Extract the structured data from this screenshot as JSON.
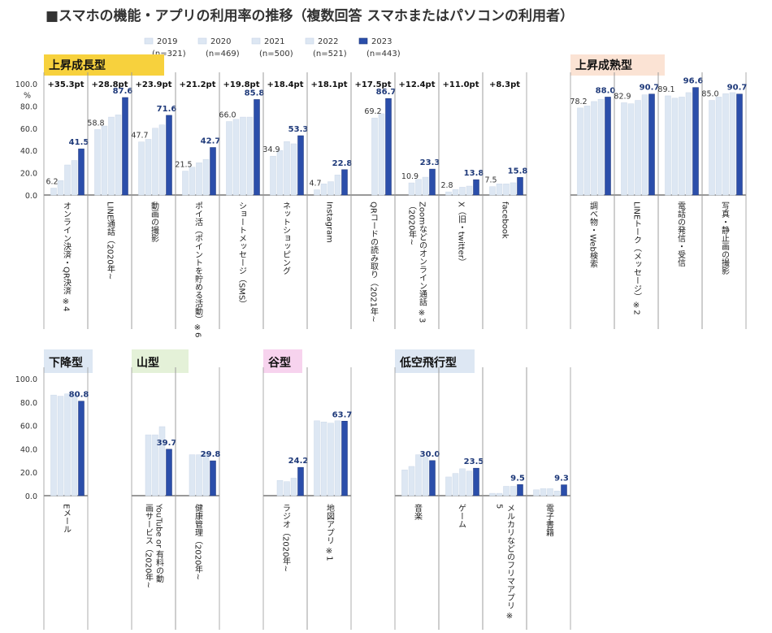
{
  "title": "■スマホの機能・アプリの利用率の推移（複数回答 スマホまたはパソコンの利用者）",
  "colors": {
    "bar_light": "#dde7f3",
    "bar_last": "#2b4eaa",
    "bar_last_border": "#1c3578",
    "grid": "#333333",
    "divider": "#999999"
  },
  "chart_data": {
    "type": "bar",
    "title": "■スマホの機能・アプリの利用率の推移（複数回答 スマホまたはパソコンの利用者）",
    "ylabel": "%",
    "ylim": [
      0,
      100
    ],
    "yticks": [
      "0.0",
      "20.0",
      "40.0",
      "60.0",
      "80.0",
      "100.0"
    ],
    "series": [
      {
        "name": "2019",
        "n": "(n=321)"
      },
      {
        "name": "2020",
        "n": "(n=469)"
      },
      {
        "name": "2021",
        "n": "(n=500)"
      },
      {
        "name": "2022",
        "n": "(n=521)"
      },
      {
        "name": "2023",
        "n": "(n=443)"
      }
    ],
    "groups": [
      {
        "label": "上昇成長型",
        "color": "#f7d13d",
        "panel": 0,
        "start": 0
      },
      {
        "label": "上昇成熟型",
        "color": "#fbe3d4",
        "panel": 0,
        "start": 11
      },
      {
        "label": "下降型",
        "color": "#dde7f3",
        "panel": 1,
        "start": 0
      },
      {
        "label": "山型",
        "color": "#e4f1d8",
        "panel": 1,
        "start": 2
      },
      {
        "label": "谷型",
        "color": "#f7d3ee",
        "panel": 1,
        "start": 5
      },
      {
        "label": "低空飛行型",
        "color": "#dde7f3",
        "panel": 1,
        "start": 9
      }
    ],
    "panels": [
      {
        "categories": [
          {
            "label": "オンライン決済・QR決済 ※4",
            "delta": "+35.3pt",
            "values": [
              6.2,
              13,
              27,
              31,
              41.5
            ],
            "first_label": "6.2",
            "last_label": "41.5"
          },
          {
            "label": "LINE通話（2020年~",
            "delta": "+28.8pt",
            "values": [
              58.8,
              62,
              70,
              72,
              87.6
            ],
            "first_label": "58.8",
            "last_label": "87.6"
          },
          {
            "label": "動画の撮影",
            "delta": "+23.9pt",
            "values": [
              47.7,
              50,
              60,
              63,
              71.6
            ],
            "first_label": "47.7",
            "last_label": "71.6"
          },
          {
            "label": "ポイ活（ポイントを貯める活動）※6",
            "delta": "+21.2pt",
            "values": [
              21.5,
              25,
              29,
              32,
              42.7
            ],
            "first_label": "21.5",
            "last_label": "42.7"
          },
          {
            "label": "ショートメッセージ（SMS）",
            "delta": "+19.8pt",
            "values": [
              66.0,
              68,
              70,
              70,
              85.8
            ],
            "first_label": "66.0",
            "last_label": "85.8"
          },
          {
            "label": "ネットショッピング",
            "delta": "+18.4pt",
            "values": [
              34.9,
              40,
              48,
              46,
              53.3
            ],
            "first_label": "34.9",
            "last_label": "53.3"
          },
          {
            "label": "Instagram",
            "delta": "+18.1pt",
            "values": [
              4.7,
              10,
              12,
              18,
              22.8
            ],
            "first_label": "4.7",
            "last_label": "22.8"
          },
          {
            "label": "QRコードの読み取り（2021年~",
            "delta": "+17.5pt",
            "values": [
              null,
              null,
              69.2,
              73,
              86.7
            ],
            "first_label": "69.2",
            "last_label": "86.7"
          },
          {
            "label": "Zoomなどのオンライン通話 ※3（2020年~",
            "delta": "+12.4pt",
            "values": [
              null,
              10.9,
              14,
              16,
              23.3
            ],
            "first_label": "10.9",
            "last_label": "23.3"
          },
          {
            "label": "X（旧・twitter）",
            "delta": "+11.0pt",
            "values": [
              2.8,
              5,
              7,
              8,
              13.8
            ],
            "first_label": "2.8",
            "last_label": "13.8"
          },
          {
            "label": "facebook",
            "delta": "+8.3pt",
            "values": [
              7.5,
              10,
              10,
              11,
              15.8
            ],
            "first_label": "7.5",
            "last_label": "15.8"
          },
          {
            "label": "調べ物・Web検索",
            "delta": "",
            "values": [
              78.2,
              80,
              84,
              86,
              88.0
            ],
            "first_label": "78.2",
            "last_label": "88.0"
          },
          {
            "label": "LINEトーク（メッセージ）※2",
            "delta": "",
            "values": [
              82.9,
              82,
              85,
              90,
              90.7
            ],
            "first_label": "82.9",
            "last_label": "90.7"
          },
          {
            "label": "電話の発信・受信",
            "delta": "",
            "values": [
              89.1,
              87,
              88,
              92,
              96.6
            ],
            "first_label": "89.1",
            "last_label": "96.6"
          },
          {
            "label": "写真・静止画の撮影",
            "delta": "",
            "values": [
              85.0,
              88,
              91,
              92,
              90.7
            ],
            "first_label": "85.0",
            "last_label": "90.7"
          }
        ]
      },
      {
        "categories": [
          {
            "label": "Eメール",
            "delta": "",
            "values": [
              86,
              85,
              87,
              87,
              80.8
            ],
            "first_label": "",
            "last_label": "80.8"
          },
          {
            "label": "YouTube or 有料の動画サービス（2020年~",
            "delta": "",
            "values": [
              null,
              52,
              52,
              59,
              39.7
            ],
            "first_label": "",
            "last_label": "39.7"
          },
          {
            "label": "健康管理（2020年~",
            "delta": "",
            "values": [
              null,
              35,
              35,
              37,
              29.8
            ],
            "first_label": "",
            "last_label": "29.8"
          },
          {
            "label": "ラジオ（2020年~",
            "delta": "",
            "values": [
              null,
              13,
              12,
              15,
              24.2
            ],
            "first_label": "",
            "last_label": "24.2"
          },
          {
            "label": "地図アプリ ※1",
            "delta": "",
            "values": [
              64,
              63,
              62,
              64,
              63.7
            ],
            "first_label": "",
            "last_label": "63.7"
          },
          {
            "label": "音楽",
            "delta": "",
            "values": [
              22,
              25,
              35,
              33,
              30.0
            ],
            "first_label": "",
            "last_label": "30.0"
          },
          {
            "label": "ゲーム",
            "delta": "",
            "values": [
              16,
              19,
              23,
              21,
              23.5
            ],
            "first_label": "",
            "last_label": "23.5"
          },
          {
            "label": "メルカリなどのフリマアプリ ※5",
            "delta": "",
            "values": [
              2,
              2,
              8,
              8,
              9.5
            ],
            "first_label": "",
            "last_label": "9.5"
          },
          {
            "label": "電子書籍",
            "delta": "",
            "values": [
              5,
              6,
              6,
              4,
              9.3
            ],
            "first_label": "",
            "last_label": "9.3"
          }
        ]
      }
    ]
  }
}
